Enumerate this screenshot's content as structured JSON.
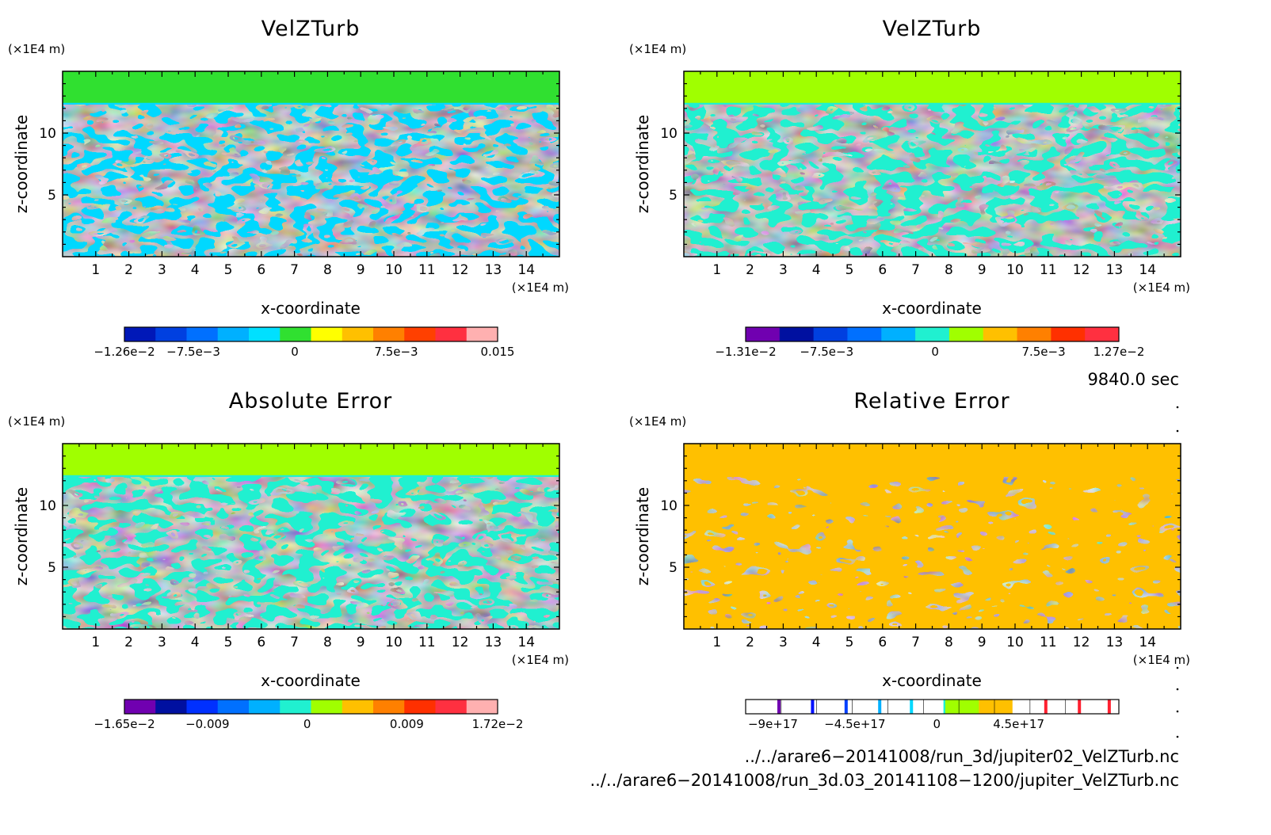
{
  "chart_data": [
    {
      "type": "heatmap",
      "title": "VelZTurb",
      "xlabel": "x-coordinate",
      "ylabel": "z-coordinate",
      "x_unit": "(×1E4 m)",
      "y_unit": "(×1E4 m)",
      "xlim": [
        0,
        15
      ],
      "ylim": [
        0,
        15
      ],
      "x_ticks": [
        1,
        2,
        3,
        4,
        5,
        6,
        7,
        8,
        9,
        10,
        11,
        12,
        13,
        14
      ],
      "y_ticks": [
        5,
        10
      ],
      "colorbar": {
        "colors": [
          "#0018b8",
          "#0040e0",
          "#0070ff",
          "#00b0ff",
          "#00e0ff",
          "#30e030",
          "#ffff00",
          "#ffc000",
          "#ff8000",
          "#ff4000",
          "#ff3040",
          "#ffb0b0"
        ],
        "tick_labels": [
          "−1.26e−2",
          "−7.5e−3",
          "0",
          "7.5e−3",
          "0.015"
        ],
        "tick_values": [
          -0.0126,
          -0.0075,
          0,
          0.0075,
          0.015
        ],
        "range": [
          -0.0126,
          0.015
        ]
      }
    },
    {
      "type": "heatmap",
      "title": "VelZTurb",
      "xlabel": "x-coordinate",
      "ylabel": "z-coordinate",
      "x_unit": "(×1E4 m)",
      "y_unit": "(×1E4 m)",
      "xlim": [
        0,
        15
      ],
      "ylim": [
        0,
        15
      ],
      "x_ticks": [
        1,
        2,
        3,
        4,
        5,
        6,
        7,
        8,
        9,
        10,
        11,
        12,
        13,
        14
      ],
      "y_ticks": [
        5,
        10
      ],
      "colorbar": {
        "colors": [
          "#7000b0",
          "#0010a0",
          "#0040e0",
          "#0070ff",
          "#00b0ff",
          "#20f0d0",
          "#a0ff00",
          "#ffc000",
          "#ff8000",
          "#ff3000",
          "#ff3040"
        ],
        "tick_labels": [
          "−1.31e−2",
          "−7.5e−3",
          "0",
          "7.5e−3",
          "1.27e−2"
        ],
        "tick_values": [
          -0.0131,
          -0.0075,
          0,
          0.0075,
          0.0127
        ],
        "range": [
          -0.0131,
          0.0127
        ]
      }
    },
    {
      "type": "heatmap",
      "title": "Absolute Error",
      "xlabel": "x-coordinate",
      "ylabel": "z-coordinate",
      "x_unit": "(×1E4 m)",
      "y_unit": "(×1E4 m)",
      "xlim": [
        0,
        15
      ],
      "ylim": [
        0,
        15
      ],
      "x_ticks": [
        1,
        2,
        3,
        4,
        5,
        6,
        7,
        8,
        9,
        10,
        11,
        12,
        13,
        14
      ],
      "y_ticks": [
        5,
        10
      ],
      "colorbar": {
        "colors": [
          "#7000b0",
          "#0010a0",
          "#0030ff",
          "#0070ff",
          "#00b0ff",
          "#20f0d0",
          "#a0ff00",
          "#ffc000",
          "#ff8000",
          "#ff3000",
          "#ff3040",
          "#ffb0b0"
        ],
        "tick_labels": [
          "−1.65e−2",
          "−0.009",
          "0",
          "0.009",
          "1.72e−2"
        ],
        "tick_values": [
          -0.0165,
          -0.009,
          0,
          0.009,
          0.0172
        ],
        "range": [
          -0.0165,
          0.0172
        ]
      }
    },
    {
      "type": "heatmap",
      "title": "Relative Error",
      "xlabel": "x-coordinate",
      "ylabel": "z-coordinate",
      "x_unit": "(×1E4 m)",
      "y_unit": "(×1E4 m)",
      "xlim": [
        0,
        15
      ],
      "ylim": [
        0,
        15
      ],
      "x_ticks": [
        1,
        2,
        3,
        4,
        5,
        6,
        7,
        8,
        9,
        10,
        11,
        12,
        13,
        14
      ],
      "y_ticks": [
        5,
        10
      ],
      "colorbar": {
        "tick_labels": [
          "−9e+17",
          "−4.5e+17",
          "0",
          "4.5e+17"
        ],
        "tick_values": [
          -9e+17,
          -4.5e+17,
          0,
          4.5e+17
        ]
      }
    }
  ],
  "time_label": "9840.0 sec",
  "footer": {
    "file1": "../../arare6−20141008/run_3d/jupiter02_VelZTurb.nc",
    "file2": "../../arare6−20141008/run_3d.03_20141108−1200/jupiter_VelZTurb.nc"
  }
}
